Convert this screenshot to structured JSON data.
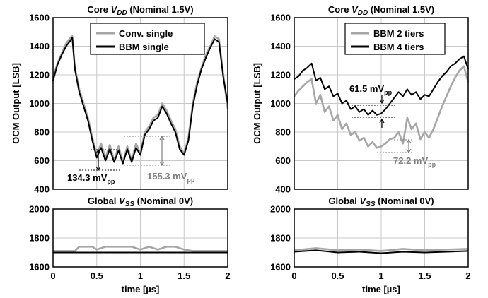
{
  "chart_data": [
    {
      "type": "line",
      "title": "Core V_DD (Nominal 1.5V)",
      "title_main": "Core ",
      "title_sym": "V",
      "title_sub": "DD",
      "title_rest": " (Nominal 1.5V)",
      "ylabel": "OCM Output [LSB]",
      "xlim": [
        0,
        2
      ],
      "ylim": [
        400,
        1600
      ],
      "yticks": [
        400,
        600,
        800,
        1000,
        1200,
        1400,
        1600
      ],
      "grid": true,
      "legend_position": "top-right",
      "series": [
        {
          "name": "Conv. single",
          "color": "#a6a6a6",
          "x": [
            0,
            0.05,
            0.1,
            0.15,
            0.2,
            0.22,
            0.25,
            0.3,
            0.35,
            0.4,
            0.45,
            0.5,
            0.55,
            0.6,
            0.65,
            0.7,
            0.75,
            0.8,
            0.85,
            0.9,
            0.95,
            1.0,
            1.05,
            1.1,
            1.15,
            1.2,
            1.25,
            1.3,
            1.35,
            1.4,
            1.45,
            1.5,
            1.55,
            1.6,
            1.65,
            1.7,
            1.75,
            1.8,
            1.85,
            1.9,
            1.95,
            2.0
          ],
          "y": [
            1180,
            1280,
            1350,
            1420,
            1460,
            1470,
            1250,
            1100,
            1000,
            900,
            760,
            640,
            720,
            620,
            710,
            600,
            700,
            590,
            700,
            600,
            720,
            650,
            800,
            840,
            900,
            920,
            1000,
            950,
            880,
            820,
            700,
            650,
            760,
            1000,
            1150,
            1250,
            1340,
            1400,
            1470,
            1450,
            1200,
            960
          ]
        },
        {
          "name": "BBM single",
          "color": "#000000",
          "x": [
            0,
            0.05,
            0.1,
            0.15,
            0.2,
            0.22,
            0.25,
            0.3,
            0.35,
            0.4,
            0.45,
            0.5,
            0.55,
            0.6,
            0.65,
            0.7,
            0.75,
            0.8,
            0.85,
            0.9,
            0.95,
            1.0,
            1.05,
            1.1,
            1.15,
            1.2,
            1.25,
            1.3,
            1.35,
            1.4,
            1.45,
            1.5,
            1.55,
            1.6,
            1.65,
            1.7,
            1.75,
            1.8,
            1.85,
            1.9,
            1.95,
            2.0
          ],
          "y": [
            1160,
            1270,
            1340,
            1400,
            1440,
            1460,
            1240,
            1080,
            980,
            880,
            740,
            620,
            690,
            600,
            680,
            590,
            670,
            580,
            680,
            590,
            690,
            640,
            780,
            820,
            880,
            900,
            980,
            930,
            860,
            800,
            680,
            640,
            740,
            980,
            1130,
            1240,
            1320,
            1390,
            1450,
            1430,
            1180,
            1000
          ]
        }
      ],
      "annotations": [
        "134.3 mV",
        "155.3 mV"
      ],
      "annotation_sub": "pp"
    },
    {
      "type": "line",
      "title": "Core V_DD (Nominal 1.5V)",
      "title_main": "Core ",
      "title_sym": "V",
      "title_sub": "DD",
      "title_rest": " (Nominal 1.5V)",
      "ylabel": "OCM Output [LSB]",
      "xlim": [
        0,
        2
      ],
      "ylim": [
        400,
        1600
      ],
      "yticks": [
        400,
        600,
        800,
        1000,
        1200,
        1400,
        1600
      ],
      "grid": true,
      "legend_position": "top-right",
      "series": [
        {
          "name": "BBM 2 tiers",
          "color": "#a6a6a6",
          "x": [
            0,
            0.05,
            0.1,
            0.15,
            0.2,
            0.25,
            0.3,
            0.35,
            0.4,
            0.45,
            0.5,
            0.55,
            0.6,
            0.65,
            0.7,
            0.75,
            0.8,
            0.85,
            0.9,
            0.95,
            1.0,
            1.05,
            1.1,
            1.15,
            1.2,
            1.25,
            1.3,
            1.35,
            1.4,
            1.45,
            1.5,
            1.55,
            1.6,
            1.65,
            1.7,
            1.75,
            1.8,
            1.85,
            1.9,
            1.95,
            2.0
          ],
          "y": [
            1050,
            1090,
            1120,
            1150,
            1170,
            1000,
            1060,
            940,
            980,
            880,
            920,
            820,
            860,
            780,
            800,
            740,
            760,
            700,
            730,
            690,
            700,
            720,
            750,
            760,
            800,
            720,
            900,
            820,
            860,
            750,
            800,
            760,
            820,
            900,
            980,
            1050,
            1120,
            1180,
            1230,
            1260,
            1150
          ]
        },
        {
          "name": "BBM 4 tiers",
          "color": "#000000",
          "x": [
            0,
            0.05,
            0.1,
            0.15,
            0.2,
            0.25,
            0.3,
            0.35,
            0.4,
            0.45,
            0.5,
            0.55,
            0.6,
            0.65,
            0.7,
            0.75,
            0.8,
            0.85,
            0.9,
            0.95,
            1.0,
            1.05,
            1.1,
            1.15,
            1.2,
            1.25,
            1.3,
            1.35,
            1.4,
            1.45,
            1.5,
            1.55,
            1.6,
            1.65,
            1.7,
            1.75,
            1.8,
            1.85,
            1.9,
            1.95,
            2.0
          ],
          "y": [
            1170,
            1190,
            1230,
            1250,
            1280,
            1160,
            1180,
            1100,
            1120,
            1050,
            1070,
            1000,
            1020,
            960,
            980,
            940,
            960,
            920,
            950,
            920,
            930,
            960,
            1000,
            1040,
            1080,
            1050,
            1100,
            1060,
            1080,
            1030,
            1060,
            1050,
            1100,
            1150,
            1190,
            1220,
            1260,
            1280,
            1310,
            1330,
            1240
          ]
        }
      ],
      "annotations": [
        "61.5 mV",
        "72.2 mV"
      ],
      "annotation_sub": "pp"
    },
    {
      "type": "line",
      "title": "Global V_SS (Nominal 0V)",
      "title_main": "Global ",
      "title_sym": "V",
      "title_sub": "SS",
      "title_rest": " (Nominal 0V)",
      "xlabel": "time [µs]",
      "xlim": [
        0,
        2
      ],
      "xticks": [
        0,
        0.5,
        1,
        1.5,
        2
      ],
      "ylim": [
        1600,
        2000
      ],
      "yticks": [
        1600,
        1800,
        2000
      ],
      "grid": true,
      "series": [
        {
          "name": "Conv. single",
          "color": "#a6a6a6",
          "x": [
            0,
            0.25,
            0.3,
            0.45,
            0.5,
            0.6,
            0.7,
            0.8,
            0.9,
            1.0,
            1.1,
            1.2,
            1.3,
            1.4,
            1.5,
            1.6,
            1.75,
            1.9,
            2.0
          ],
          "y": [
            1710,
            1710,
            1740,
            1740,
            1720,
            1740,
            1740,
            1740,
            1740,
            1720,
            1740,
            1720,
            1740,
            1740,
            1720,
            1710,
            1710,
            1710,
            1710
          ]
        },
        {
          "name": "BBM single",
          "color": "#000000",
          "x": [
            0,
            0.5,
            1.0,
            1.5,
            2.0
          ],
          "y": [
            1700,
            1700,
            1700,
            1700,
            1700
          ]
        }
      ]
    },
    {
      "type": "line",
      "title": "Global V_SS (Nominal 0V)",
      "title_main": "Global ",
      "title_sym": "V",
      "title_sub": "SS",
      "title_rest": " (Nominal 0V)",
      "xlabel": "time [µs]",
      "xlim": [
        0,
        2
      ],
      "xticks": [
        0,
        0.5,
        1,
        1.5,
        2
      ],
      "ylim": [
        1600,
        2000
      ],
      "yticks": [
        1600,
        1800,
        2000
      ],
      "grid": true,
      "series": [
        {
          "name": "BBM 2 tiers",
          "color": "#a6a6a6",
          "x": [
            0,
            0.25,
            0.5,
            0.75,
            1.0,
            1.25,
            1.5,
            1.75,
            2.0
          ],
          "y": [
            1715,
            1730,
            1715,
            1720,
            1710,
            1725,
            1715,
            1720,
            1725
          ]
        },
        {
          "name": "BBM 4 tiers",
          "color": "#000000",
          "x": [
            0,
            0.25,
            0.5,
            0.75,
            1.0,
            1.25,
            1.5,
            1.75,
            2.0
          ],
          "y": [
            1705,
            1715,
            1700,
            1705,
            1695,
            1705,
            1700,
            1705,
            1710
          ]
        }
      ]
    }
  ]
}
